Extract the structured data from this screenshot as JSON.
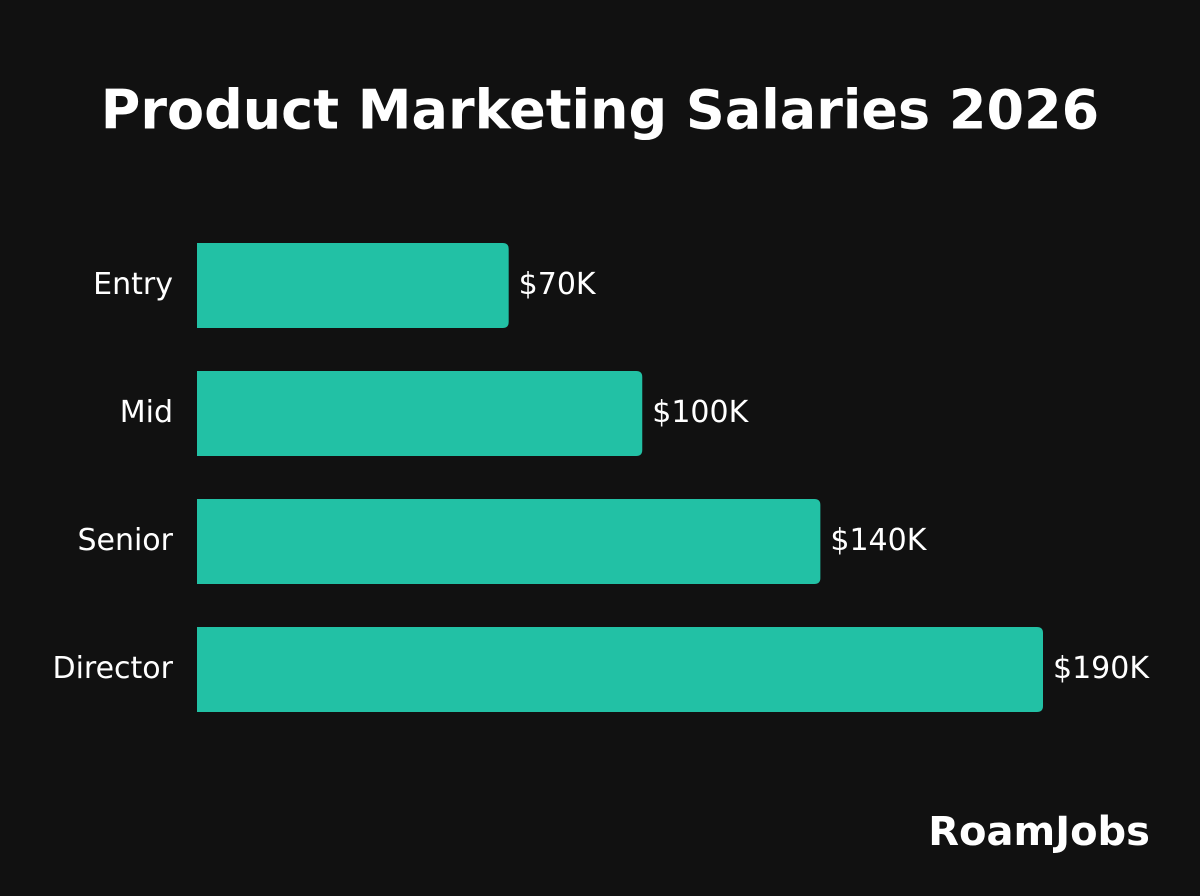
{
  "chart_data": {
    "type": "bar",
    "orientation": "horizontal",
    "title": "Product Marketing Salaries 2026",
    "categories": [
      "Entry",
      "Mid",
      "Senior",
      "Director"
    ],
    "values": [
      70,
      100,
      140,
      190
    ],
    "value_labels": [
      "$70K",
      "$100K",
      "$140K",
      "$190K"
    ],
    "color": "#22c1a5"
  },
  "brand": "RoamJobs"
}
